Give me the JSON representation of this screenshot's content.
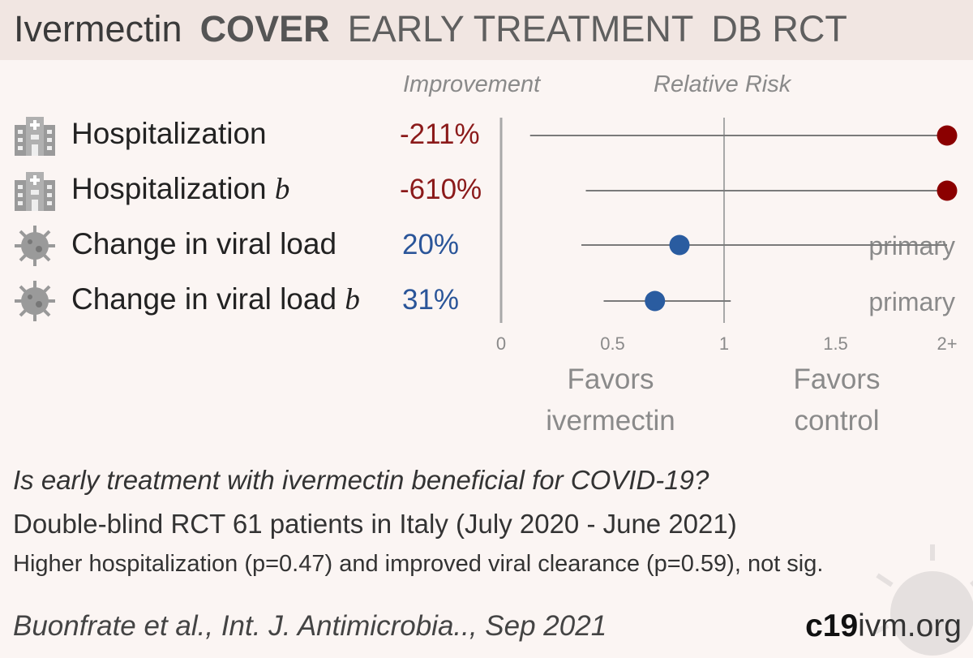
{
  "header": {
    "drug": "Ivermectin",
    "study": "COVER",
    "stage": "EARLY TREATMENT",
    "design": "DB RCT"
  },
  "columns": {
    "improvement": "Improvement",
    "relative_risk": "Relative Risk"
  },
  "rows": [
    {
      "label": "Hospitalization",
      "suffix": "",
      "improvement": "-211%",
      "icon": "hospital-icon",
      "direction": "negative",
      "note": ""
    },
    {
      "label": "Hospitalization ",
      "suffix": "b",
      "improvement": "-610%",
      "icon": "hospital-icon",
      "direction": "negative",
      "note": ""
    },
    {
      "label": "Change in viral load",
      "suffix": "",
      "improvement": "20%",
      "icon": "virus-icon",
      "direction": "positive",
      "note": "primary"
    },
    {
      "label": "Change in viral load ",
      "suffix": "b",
      "improvement": "31%",
      "icon": "virus-icon",
      "direction": "positive",
      "note": "primary"
    }
  ],
  "chart_data": {
    "type": "forest",
    "xlabel": "",
    "xlim": [
      0,
      2
    ],
    "xticks": [
      0,
      0.5,
      1,
      1.5,
      2
    ],
    "xtick_labels": [
      "0",
      "0.5",
      "1",
      "1.5",
      "2+"
    ],
    "reference_line": 1,
    "favors_left": "Favors ivermectin",
    "favors_right": "Favors control",
    "series": [
      {
        "outcome": "Hospitalization",
        "rr": 2.0,
        "ci": [
          0.13,
          2.0
        ]
      },
      {
        "outcome": "Hospitalization b",
        "rr": 2.0,
        "ci": [
          0.38,
          2.0
        ]
      },
      {
        "outcome": "Change in viral load",
        "rr": 0.8,
        "ci": [
          0.36,
          2.0
        ]
      },
      {
        "outcome": "Change in viral load b",
        "rr": 0.69,
        "ci": [
          0.46,
          1.03
        ]
      }
    ],
    "colors": {
      "harm": "#8b0000",
      "benefit": "#2a5ca0",
      "line": "#7a7a7a",
      "axis": "#a8a8a8"
    }
  },
  "footer": {
    "question": "Is early treatment with ivermectin beneficial for COVID-19?",
    "design": "Double-blind RCT 61 patients in Italy (July 2020 - June 2021)",
    "result": "Higher hospitalization (p=0.47) and improved viral clearance (p=0.59), not sig.",
    "citation": "Buonfrate et al., Int. J. Antimicrobia.., Sep 2021",
    "brand_bold": "c19",
    "brand_rest": "ivm.org"
  }
}
